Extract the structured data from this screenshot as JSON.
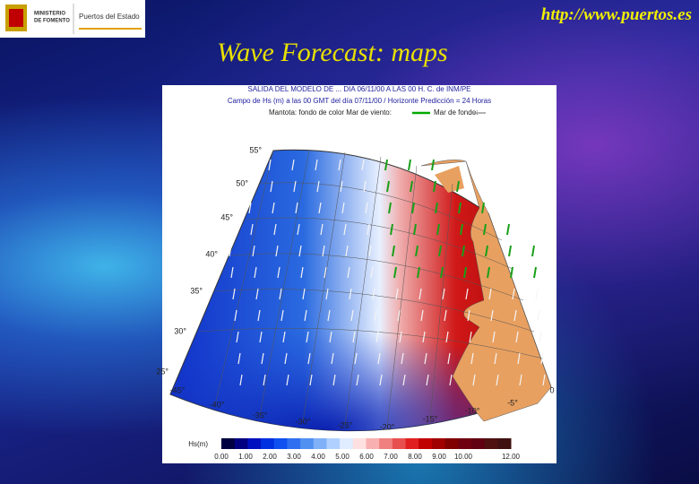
{
  "header": {
    "logo_ministry": [
      "MINISTERIO",
      "DE FOMENTO"
    ],
    "logo_org": "Puertos del Estado",
    "url": "http://www.puertos.es",
    "title": "Wave Forecast: maps"
  },
  "map": {
    "header_lines": [
      "SALIDA DEL MODELO DE ... DIA 06/11/00 A LAS 00 H.  C. de INM/PE",
      "Campo de Hs (m) a las 00 GMT del día 07/11/00 / Horizonte Predicción = 24 Horas"
    ],
    "legend_text": "Mantota: fondo de color   Mar de viento:",
    "legend_swell": "Mar de fondo:",
    "lat_labels": [
      "55°",
      "50°",
      "45°",
      "40°",
      "35°",
      "30°",
      "25°"
    ],
    "lon_labels": [
      "-45°",
      "-40°",
      "-35°",
      "-30°",
      "-25°",
      "-20°",
      "-15°",
      "-10°",
      "-5°",
      "0"
    ],
    "colorbar_title": "Hs(m)",
    "colorbar_labels": [
      "0.00",
      "1.00",
      "2.00",
      "3.00",
      "4.00",
      "5.00",
      "6.00",
      "7.00",
      "8.00",
      "9.00",
      "10.00",
      "12.00"
    ]
  }
}
